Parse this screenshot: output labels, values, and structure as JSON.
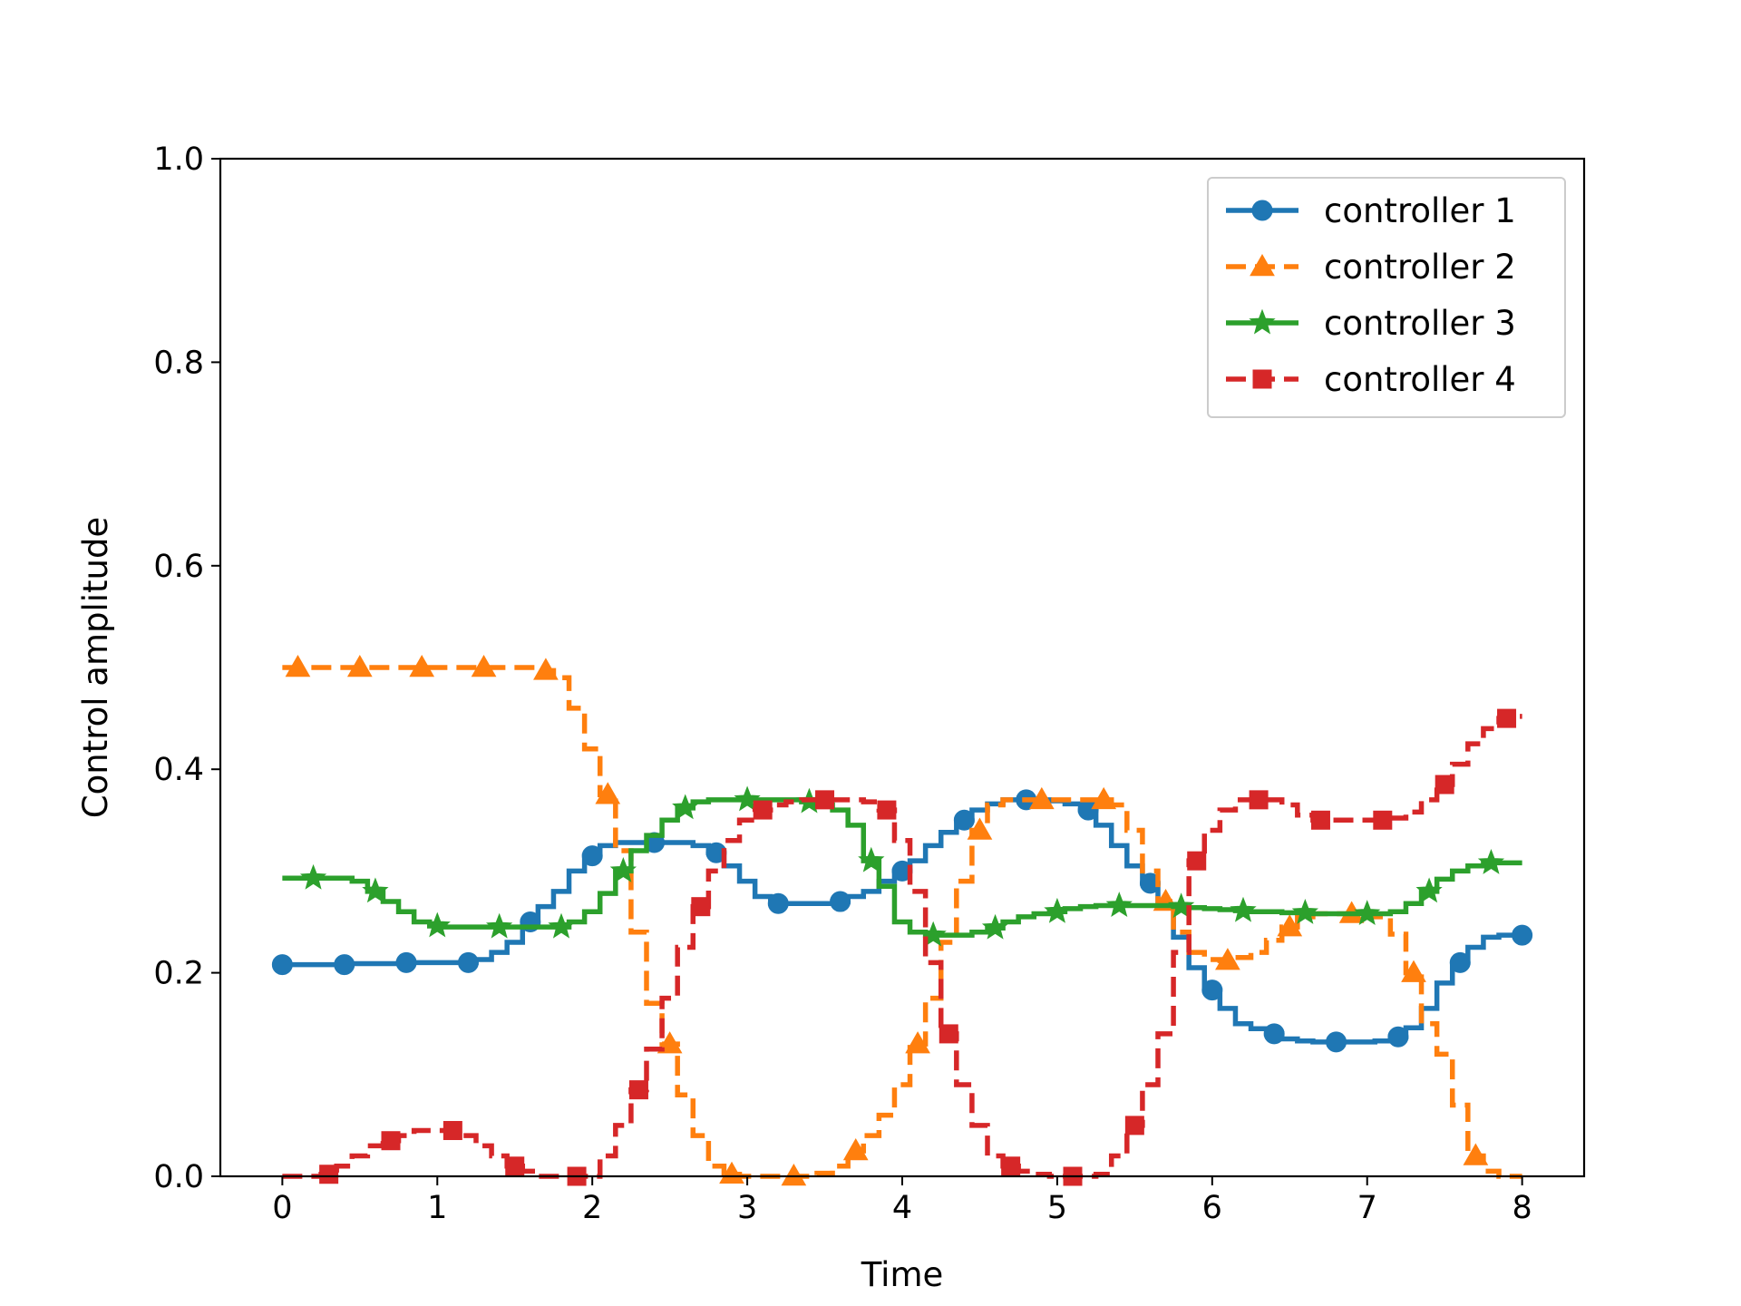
{
  "chart_data": {
    "type": "line",
    "step": true,
    "title": "",
    "xlabel": "Time",
    "ylabel": "Control amplitude",
    "xlim": [
      -0.4,
      8.4
    ],
    "ylim": [
      0,
      1.0
    ],
    "xticks": [
      0,
      1,
      2,
      3,
      4,
      5,
      6,
      7,
      8
    ],
    "yticks": [
      0.0,
      0.2,
      0.4,
      0.6,
      0.8,
      1.0
    ],
    "xtick_labels": [
      "0",
      "1",
      "2",
      "3",
      "4",
      "5",
      "6",
      "7",
      "8"
    ],
    "ytick_labels": [
      "0.0",
      "0.2",
      "0.4",
      "0.6",
      "0.8",
      "1.0"
    ],
    "grid": false,
    "legend_position": "top-right",
    "x": [
      0.0,
      0.1,
      0.2,
      0.3,
      0.4,
      0.5,
      0.6,
      0.7,
      0.8,
      0.9,
      1.0,
      1.1,
      1.2,
      1.3,
      1.4,
      1.5,
      1.6,
      1.7,
      1.8,
      1.9,
      2.0,
      2.1,
      2.2,
      2.3,
      2.4,
      2.5,
      2.6,
      2.7,
      2.8,
      2.9,
      3.0,
      3.1,
      3.2,
      3.3,
      3.4,
      3.5,
      3.6,
      3.7,
      3.8,
      3.9,
      4.0,
      4.1,
      4.2,
      4.3,
      4.4,
      4.5,
      4.6,
      4.7,
      4.8,
      4.9,
      5.0,
      5.1,
      5.2,
      5.3,
      5.4,
      5.5,
      5.6,
      5.7,
      5.8,
      5.9,
      6.0,
      6.1,
      6.2,
      6.3,
      6.4,
      6.5,
      6.6,
      6.7,
      6.8,
      6.9,
      7.0,
      7.1,
      7.2,
      7.3,
      7.4,
      7.5,
      7.6,
      7.7,
      7.8,
      7.9,
      8.0
    ],
    "series": [
      {
        "name": "controller 1",
        "color": "#1f77b4",
        "dash": "solid",
        "marker": "circle",
        "values": [
          0.208,
          0.208,
          0.208,
          0.208,
          0.208,
          0.209,
          0.209,
          0.209,
          0.21,
          0.21,
          0.21,
          0.21,
          0.21,
          0.213,
          0.22,
          0.23,
          0.25,
          0.265,
          0.28,
          0.3,
          0.315,
          0.325,
          0.328,
          0.328,
          0.328,
          0.328,
          0.328,
          0.325,
          0.318,
          0.305,
          0.29,
          0.275,
          0.268,
          0.268,
          0.268,
          0.268,
          0.27,
          0.275,
          0.28,
          0.29,
          0.3,
          0.31,
          0.325,
          0.338,
          0.35,
          0.36,
          0.366,
          0.37,
          0.37,
          0.37,
          0.369,
          0.366,
          0.36,
          0.345,
          0.325,
          0.305,
          0.288,
          0.265,
          0.235,
          0.205,
          0.183,
          0.165,
          0.15,
          0.145,
          0.14,
          0.135,
          0.133,
          0.132,
          0.132,
          0.132,
          0.132,
          0.133,
          0.137,
          0.146,
          0.165,
          0.19,
          0.21,
          0.225,
          0.235,
          0.237,
          0.237
        ]
      },
      {
        "name": "controller 2",
        "color": "#ff7f0e",
        "dash": "dashed",
        "marker": "triangle",
        "values": [
          0.5,
          0.5,
          0.5,
          0.5,
          0.5,
          0.5,
          0.5,
          0.5,
          0.5,
          0.5,
          0.5,
          0.5,
          0.5,
          0.5,
          0.5,
          0.5,
          0.5,
          0.497,
          0.49,
          0.46,
          0.42,
          0.375,
          0.32,
          0.24,
          0.17,
          0.13,
          0.08,
          0.04,
          0.01,
          0.002,
          0.0,
          0.0,
          0.0,
          0.0,
          0.0,
          0.003,
          0.01,
          0.025,
          0.04,
          0.06,
          0.09,
          0.13,
          0.175,
          0.23,
          0.29,
          0.34,
          0.365,
          0.37,
          0.37,
          0.37,
          0.37,
          0.37,
          0.37,
          0.37,
          0.365,
          0.34,
          0.3,
          0.27,
          0.24,
          0.22,
          0.213,
          0.212,
          0.215,
          0.22,
          0.232,
          0.245,
          0.255,
          0.258,
          0.258,
          0.258,
          0.258,
          0.255,
          0.238,
          0.2,
          0.15,
          0.12,
          0.07,
          0.02,
          0.005,
          0.0,
          0.0
        ]
      },
      {
        "name": "controller 3",
        "color": "#2ca02c",
        "dash": "solid",
        "marker": "star",
        "values": [
          0.293,
          0.293,
          0.293,
          0.293,
          0.293,
          0.29,
          0.28,
          0.27,
          0.26,
          0.25,
          0.246,
          0.245,
          0.245,
          0.245,
          0.245,
          0.245,
          0.245,
          0.245,
          0.245,
          0.25,
          0.26,
          0.278,
          0.3,
          0.32,
          0.335,
          0.35,
          0.362,
          0.368,
          0.37,
          0.37,
          0.37,
          0.37,
          0.37,
          0.37,
          0.368,
          0.365,
          0.36,
          0.345,
          0.31,
          0.285,
          0.25,
          0.24,
          0.237,
          0.237,
          0.237,
          0.24,
          0.244,
          0.25,
          0.255,
          0.258,
          0.26,
          0.263,
          0.265,
          0.266,
          0.266,
          0.266,
          0.266,
          0.266,
          0.265,
          0.264,
          0.263,
          0.262,
          0.261,
          0.26,
          0.26,
          0.259,
          0.259,
          0.258,
          0.258,
          0.258,
          0.258,
          0.258,
          0.26,
          0.268,
          0.28,
          0.292,
          0.3,
          0.305,
          0.308,
          0.308,
          0.308
        ]
      },
      {
        "name": "controller 4",
        "color": "#d62728",
        "dash": "dashed",
        "marker": "square",
        "values": [
          0.0,
          0.0,
          0.0,
          0.002,
          0.01,
          0.02,
          0.03,
          0.035,
          0.04,
          0.045,
          0.045,
          0.045,
          0.04,
          0.03,
          0.02,
          0.01,
          0.005,
          0.0,
          0.0,
          0.0,
          0.0,
          0.02,
          0.05,
          0.085,
          0.125,
          0.175,
          0.225,
          0.265,
          0.3,
          0.33,
          0.35,
          0.36,
          0.365,
          0.368,
          0.37,
          0.37,
          0.37,
          0.37,
          0.368,
          0.36,
          0.33,
          0.28,
          0.21,
          0.14,
          0.09,
          0.05,
          0.02,
          0.01,
          0.005,
          0.002,
          0.0,
          0.0,
          0.0,
          0.002,
          0.02,
          0.05,
          0.09,
          0.14,
          0.22,
          0.31,
          0.34,
          0.36,
          0.37,
          0.37,
          0.37,
          0.365,
          0.355,
          0.35,
          0.35,
          0.35,
          0.35,
          0.35,
          0.352,
          0.358,
          0.37,
          0.385,
          0.405,
          0.425,
          0.44,
          0.45,
          0.452
        ]
      }
    ]
  }
}
